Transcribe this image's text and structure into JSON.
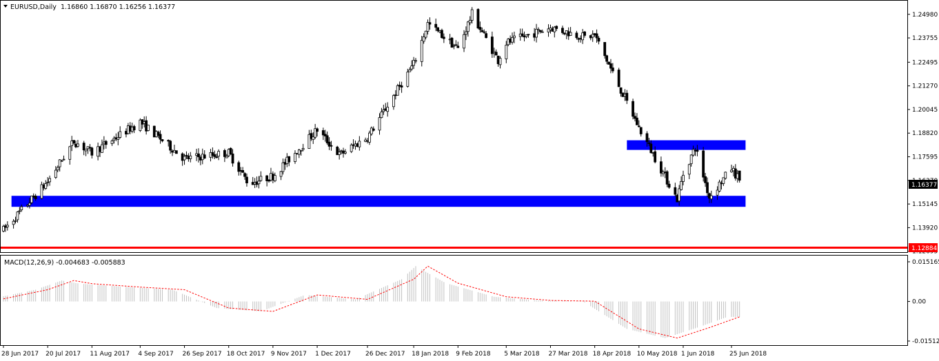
{
  "header": {
    "symbol_title": "EURUSD,Daily",
    "ohlc": "1.16860 1.16870 1.16256 1.16377"
  },
  "price_axis": {
    "ticks": [
      "1.24980",
      "1.23755",
      "1.22495",
      "1.21270",
      "1.20045",
      "1.18820",
      "1.17595",
      "1.16370",
      "1.15145",
      "1.13920",
      "1.12695"
    ],
    "current_price_label": "1.16377",
    "line_price_label": "1.12884"
  },
  "macd": {
    "title": "MACD(12,26,9) -0.004683 -0.005883",
    "ticks": [
      "0.015165",
      "0.00",
      "-0.015128"
    ]
  },
  "time_axis": {
    "labels": [
      "28 Jun 2017",
      "20 Jul 2017",
      "11 Aug 2017",
      "4 Sep 2017",
      "26 Sep 2017",
      "18 Oct 2017",
      "9 Nov 2017",
      "1 Dec 2017",
      "26 Dec 2017",
      "18 Jan 2018",
      "9 Feb 2018",
      "5 Mar 2018",
      "27 Mar 2018",
      "18 Apr 2018",
      "10 May 2018",
      "1 Jun 2018",
      "25 Jun 2018"
    ]
  },
  "colors": {
    "background": "#ffffff",
    "zone": "#0000ff",
    "horizontal_line": "#ff0000",
    "bull_candle": "#ffffff",
    "bear_candle": "#000000",
    "macd_signal": "#ff0000",
    "macd_histogram": "#c0c0c0"
  },
  "chart_data": {
    "type": "candlestick",
    "symbol": "EURUSD",
    "timeframe": "Daily",
    "x_range": [
      "28 Jun 2017",
      "25 Jun 2018"
    ],
    "y_range": [
      1.1265,
      1.2565
    ],
    "price_path": [
      [
        "28 Jun 2017",
        1.138
      ],
      [
        "20 Jul 2017",
        1.163
      ],
      [
        "2 Aug 2017",
        1.184
      ],
      [
        "11 Aug 2017",
        1.178
      ],
      [
        "4 Sep 2017",
        1.194
      ],
      [
        "26 Sep 2017",
        1.175
      ],
      [
        "18 Oct 2017",
        1.178
      ],
      [
        "28 Oct 2017",
        1.162
      ],
      [
        "9 Nov 2017",
        1.166
      ],
      [
        "1 Dec 2017",
        1.19
      ],
      [
        "12 Dec 2017",
        1.177
      ],
      [
        "26 Dec 2017",
        1.186
      ],
      [
        "18 Jan 2018",
        1.224
      ],
      [
        "25 Jan 2018",
        1.245
      ],
      [
        "9 Feb 2018",
        1.232
      ],
      [
        "16 Feb 2018",
        1.25
      ],
      [
        "1 Mar 2018",
        1.226
      ],
      [
        "5 Mar 2018",
        1.235
      ],
      [
        "27 Mar 2018",
        1.243
      ],
      [
        "13 Apr 2018",
        1.238
      ],
      [
        "18 Apr 2018",
        1.239
      ],
      [
        "10 May 2018",
        1.191
      ],
      [
        "29 May 2018",
        1.154
      ],
      [
        "1 Jun 2018",
        1.167
      ],
      [
        "7 Jun 2018",
        1.181
      ],
      [
        "14 Jun 2018",
        1.155
      ],
      [
        "25 Jun 2018",
        1.17
      ],
      [
        "29 Jun 2018",
        1.1638
      ]
    ],
    "last_candle": {
      "open": 1.1686,
      "high": 1.1687,
      "low": 1.16256,
      "close": 1.16377
    },
    "zones": [
      {
        "from": "2 Jul 2017",
        "to": "2 Jul 2018",
        "low": 1.15,
        "high": 1.1557
      },
      {
        "from": "4 May 2018",
        "to": "2 Jul 2018",
        "low": 1.1795,
        "high": 1.1845
      }
    ],
    "horizontal_lines": [
      {
        "price": 1.12884
      }
    ],
    "macd_signal_path": [
      [
        "28 Jun 2017",
        0.001
      ],
      [
        "20 Jul 2017",
        0.0045
      ],
      [
        "2 Aug 2017",
        0.008
      ],
      [
        "11 Aug 2017",
        0.0068
      ],
      [
        "4 Sep 2017",
        0.0055
      ],
      [
        "26 Sep 2017",
        0.0045
      ],
      [
        "18 Oct 2017",
        -0.0025
      ],
      [
        "9 Nov 2017",
        -0.0038
      ],
      [
        "1 Dec 2017",
        0.0025
      ],
      [
        "26 Dec 2017",
        0.0008
      ],
      [
        "18 Jan 2018",
        0.0085
      ],
      [
        "25 Jan 2018",
        0.0135
      ],
      [
        "9 Feb 2018",
        0.007
      ],
      [
        "5 Mar 2018",
        0.0018
      ],
      [
        "27 Mar 2018",
        0.0004
      ],
      [
        "18 Apr 2018",
        0.0001
      ],
      [
        "10 May 2018",
        -0.0105
      ],
      [
        "29 May 2018",
        -0.014
      ],
      [
        "14 Jun 2018",
        -0.01
      ],
      [
        "29 Jun 2018",
        -0.0059
      ]
    ]
  }
}
